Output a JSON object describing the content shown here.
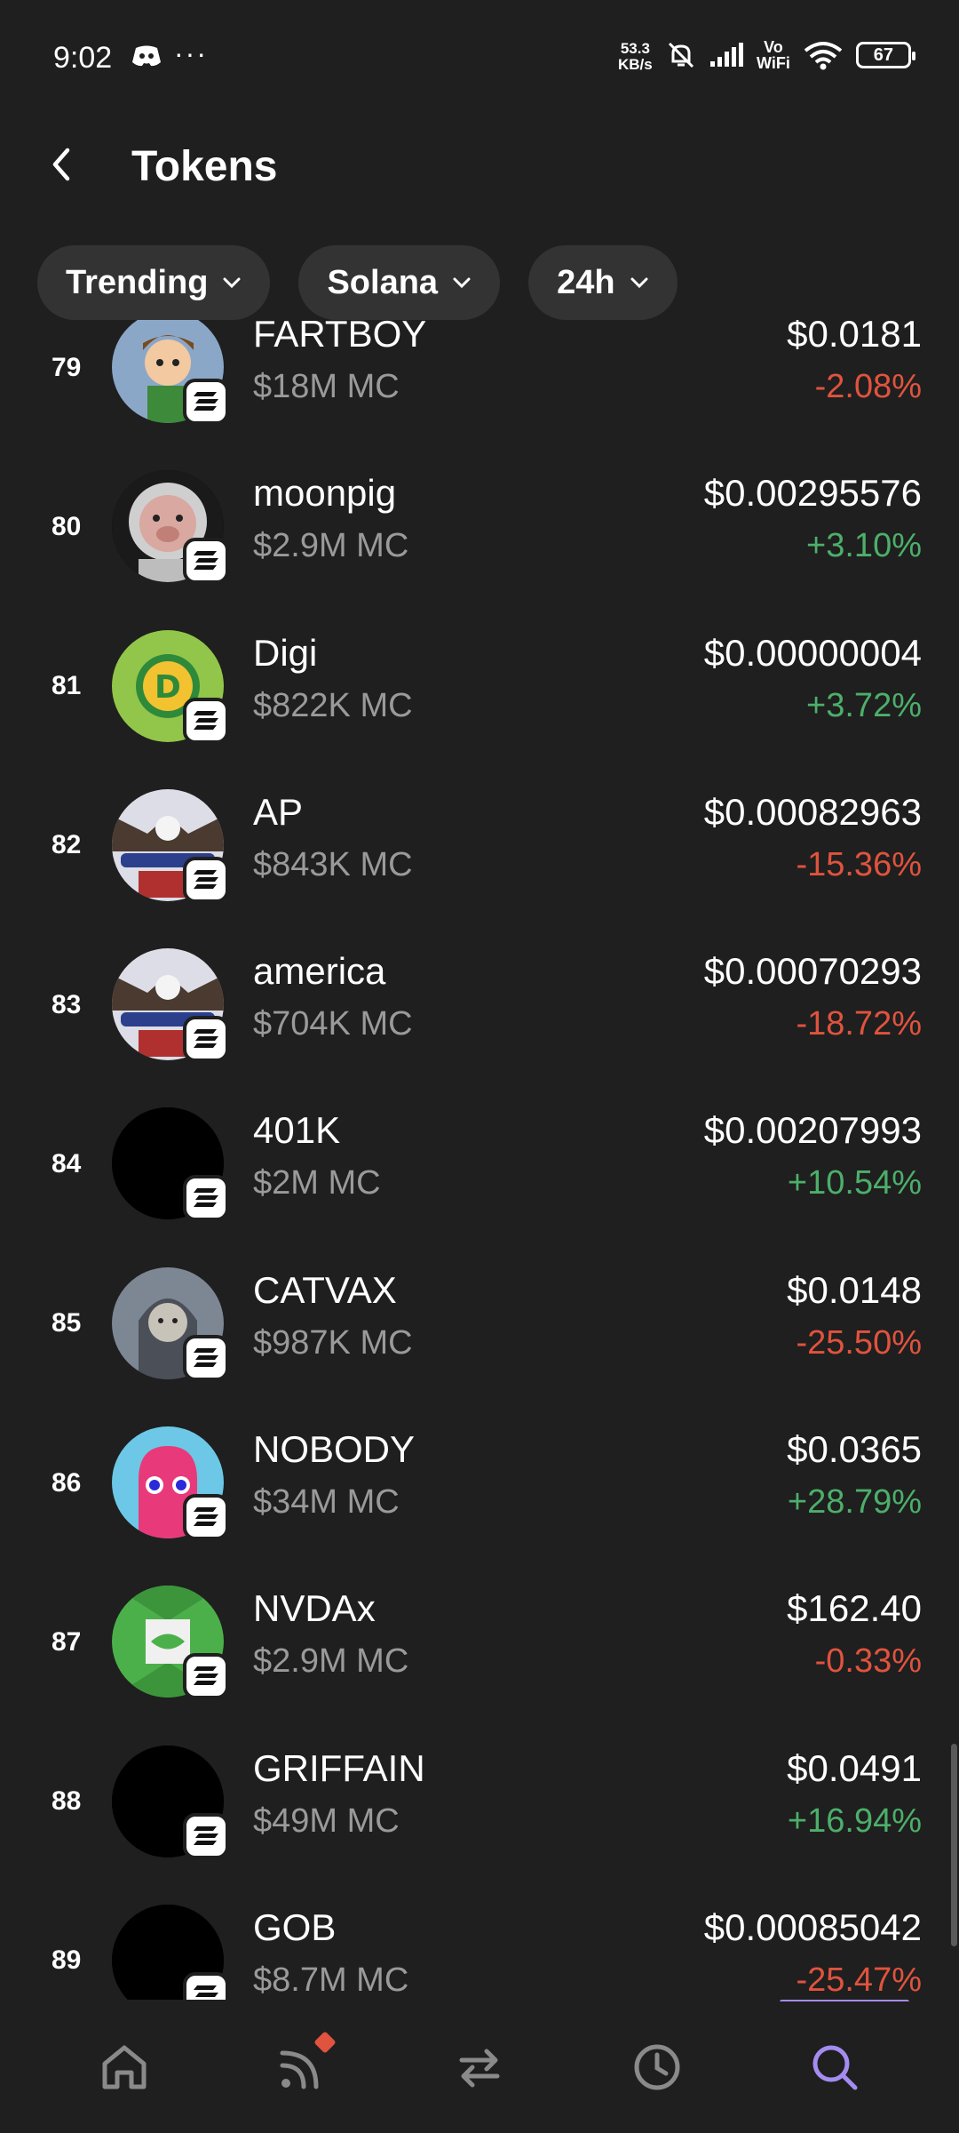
{
  "status_bar": {
    "time": "9:02",
    "dots": "···",
    "speed_value": "53.3",
    "speed_unit": "KB/s",
    "vowifi_top": "Vo",
    "vowifi_bottom": "WiFi",
    "battery": "67"
  },
  "header": {
    "title": "Tokens"
  },
  "filters": [
    {
      "label": "Trending"
    },
    {
      "label": "Solana"
    },
    {
      "label": "24h"
    }
  ],
  "tokens": [
    {
      "rank": "79",
      "name": "FARTBOY",
      "mc": "$18M MC",
      "price": "$0.0181",
      "change": "-2.08%",
      "direction": "neg"
    },
    {
      "rank": "80",
      "name": "moonpig",
      "mc": "$2.9M MC",
      "price": "$0.00295576",
      "change": "+3.10%",
      "direction": "pos"
    },
    {
      "rank": "81",
      "name": "Digi",
      "mc": "$822K MC",
      "price": "$0.00000004",
      "change": "+3.72%",
      "direction": "pos"
    },
    {
      "rank": "82",
      "name": "AP",
      "mc": "$843K MC",
      "price": "$0.00082963",
      "change": "-15.36%",
      "direction": "neg"
    },
    {
      "rank": "83",
      "name": "america",
      "mc": "$704K MC",
      "price": "$0.00070293",
      "change": "-18.72%",
      "direction": "neg"
    },
    {
      "rank": "84",
      "name": "401K",
      "mc": "$2M MC",
      "price": "$0.00207993",
      "change": "+10.54%",
      "direction": "pos"
    },
    {
      "rank": "85",
      "name": "CATVAX",
      "mc": "$987K MC",
      "price": "$0.0148",
      "change": "-25.50%",
      "direction": "neg"
    },
    {
      "rank": "86",
      "name": "NOBODY",
      "mc": "$34M MC",
      "price": "$0.0365",
      "change": "+28.79%",
      "direction": "pos"
    },
    {
      "rank": "87",
      "name": "NVDAx",
      "mc": "$2.9M MC",
      "price": "$162.40",
      "change": "-0.33%",
      "direction": "neg"
    },
    {
      "rank": "88",
      "name": "GRIFFAIN",
      "mc": "$49M MC",
      "price": "$0.0491",
      "change": "+16.94%",
      "direction": "pos"
    },
    {
      "rank": "89",
      "name": "GOB",
      "mc": "$8.7M MC",
      "price": "$0.00085042",
      "change": "-25.47%",
      "direction": "neg"
    }
  ],
  "bottom_nav": [
    {
      "icon": "home-icon",
      "active": false
    },
    {
      "icon": "feed-icon",
      "active": false,
      "badge": true
    },
    {
      "icon": "swap-icon",
      "active": false
    },
    {
      "icon": "history-icon",
      "active": false
    },
    {
      "icon": "search-icon",
      "active": true
    }
  ],
  "colors": {
    "background": "#1f1f1f",
    "chip": "#333333",
    "negative": "#e0533e",
    "positive": "#4caf6a",
    "active_nav": "#a48cf0",
    "inactive_nav": "#8a8a8a"
  }
}
